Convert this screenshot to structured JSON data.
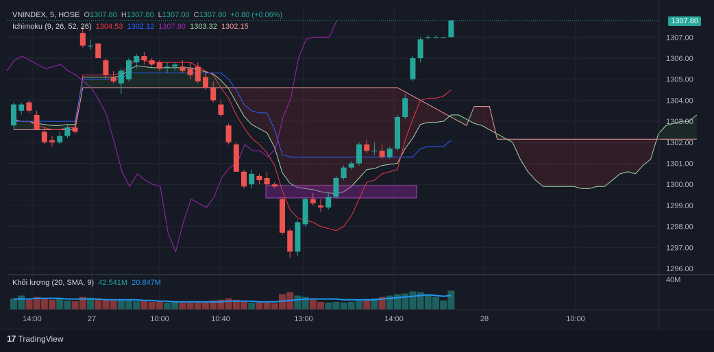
{
  "legend": {
    "symbol": "VNINDEX, 5, HOSE",
    "o_label": "O",
    "o": "1307.80",
    "h_label": "H",
    "h": "1307.80",
    "l_label": "L",
    "l": "1307.00",
    "c_label": "C",
    "c": "1307.80",
    "change": "+0.80 (+0.06%)"
  },
  "ichimoku": {
    "label": "Ichimoku (9, 26, 52, 26)",
    "conversion": "1304.53",
    "base": "1302.12",
    "lagging": "1307.80",
    "lead_a": "1303.32",
    "lead_b": "1302.15"
  },
  "volume_legend": {
    "label": "Khối lượng (20, SMA, 9)",
    "volume": "42.541M",
    "sma": "20.847M"
  },
  "last_price_tag": "1307.80",
  "footer": {
    "brand": "TradingView"
  },
  "colors": {
    "up": "#26a69a",
    "down": "#ef5350",
    "conversion": "#f23645",
    "base": "#2962ff",
    "lagging": "#9c27b0",
    "lead_a": "#a5d6a7",
    "lead_b": "#ef9a9a",
    "volume_sma": "#2196f3"
  },
  "chart_data": {
    "type": "candlestick",
    "y_ticks": [
      "1296.00",
      "1297.00",
      "1298.00",
      "1299.00",
      "1300.00",
      "1301.00",
      "1302.00",
      "1303.00",
      "1304.00",
      "1305.00",
      "1306.00",
      "1307.00"
    ],
    "ylim": [
      1295.8,
      1308.3
    ],
    "x_ticks": [
      "14:00",
      "27",
      "10:00",
      "10:40",
      "13:00",
      "14:00",
      "28",
      "10:00"
    ],
    "volume_tick": "40M",
    "candles": [
      {
        "o": 1302.8,
        "h": 1303.9,
        "l": 1302.6,
        "c": 1303.8
      },
      {
        "o": 1303.5,
        "h": 1303.9,
        "l": 1303.3,
        "c": 1303.8
      },
      {
        "o": 1303.9,
        "h": 1304.0,
        "l": 1303.4,
        "c": 1303.5
      },
      {
        "o": 1303.3,
        "h": 1303.5,
        "l": 1302.6,
        "c": 1302.6
      },
      {
        "o": 1302.5,
        "h": 1302.7,
        "l": 1301.9,
        "c": 1302.0
      },
      {
        "o": 1302.1,
        "h": 1302.3,
        "l": 1301.8,
        "c": 1302.0
      },
      {
        "o": 1302.0,
        "h": 1302.5,
        "l": 1301.9,
        "c": 1302.3
      },
      {
        "o": 1302.3,
        "h": 1302.8,
        "l": 1302.2,
        "c": 1302.7
      },
      {
        "o": 1302.7,
        "h": 1302.8,
        "l": 1302.4,
        "c": 1302.5
      },
      {
        "o": 1307.2,
        "h": 1307.5,
        "l": 1306.5,
        "c": 1306.6
      },
      {
        "o": 1306.6,
        "h": 1306.9,
        "l": 1306.4,
        "c": 1306.6
      },
      {
        "o": 1306.7,
        "h": 1306.7,
        "l": 1306.0,
        "c": 1306.0
      },
      {
        "o": 1305.9,
        "h": 1306.0,
        "l": 1305.0,
        "c": 1305.2
      },
      {
        "o": 1305.1,
        "h": 1305.4,
        "l": 1304.8,
        "c": 1304.9
      },
      {
        "o": 1304.8,
        "h": 1305.5,
        "l": 1304.3,
        "c": 1305.4
      },
      {
        "o": 1305.0,
        "h": 1306.0,
        "l": 1304.9,
        "c": 1305.9
      },
      {
        "o": 1305.8,
        "h": 1306.2,
        "l": 1305.5,
        "c": 1306.1
      },
      {
        "o": 1306.1,
        "h": 1306.3,
        "l": 1305.7,
        "c": 1305.9
      },
      {
        "o": 1305.9,
        "h": 1306.0,
        "l": 1305.6,
        "c": 1305.7
      },
      {
        "o": 1305.8,
        "h": 1305.9,
        "l": 1305.4,
        "c": 1305.5
      },
      {
        "o": 1305.6,
        "h": 1305.8,
        "l": 1305.3,
        "c": 1305.6
      },
      {
        "o": 1305.6,
        "h": 1305.8,
        "l": 1305.4,
        "c": 1305.7
      },
      {
        "o": 1305.6,
        "h": 1305.9,
        "l": 1305.3,
        "c": 1305.4
      },
      {
        "o": 1305.5,
        "h": 1305.8,
        "l": 1305.0,
        "c": 1305.2
      },
      {
        "o": 1305.6,
        "h": 1305.8,
        "l": 1304.8,
        "c": 1304.9
      },
      {
        "o": 1305.1,
        "h": 1305.3,
        "l": 1304.5,
        "c": 1304.6
      },
      {
        "o": 1304.6,
        "h": 1304.9,
        "l": 1303.9,
        "c": 1304.0
      },
      {
        "o": 1303.8,
        "h": 1304.0,
        "l": 1303.2,
        "c": 1303.3
      },
      {
        "o": 1302.8,
        "h": 1302.9,
        "l": 1301.9,
        "c": 1302.0
      },
      {
        "o": 1301.9,
        "h": 1302.0,
        "l": 1300.6,
        "c": 1300.6
      },
      {
        "o": 1300.6,
        "h": 1300.7,
        "l": 1299.8,
        "c": 1299.9
      },
      {
        "o": 1300.0,
        "h": 1300.7,
        "l": 1299.8,
        "c": 1300.5
      },
      {
        "o": 1300.4,
        "h": 1300.5,
        "l": 1300.0,
        "c": 1300.2
      },
      {
        "o": 1300.3,
        "h": 1300.6,
        "l": 1299.9,
        "c": 1300.0
      },
      {
        "o": 1300.0,
        "h": 1300.1,
        "l": 1299.8,
        "c": 1299.9
      },
      {
        "o": 1299.3,
        "h": 1299.4,
        "l": 1297.6,
        "c": 1297.7
      },
      {
        "o": 1297.8,
        "h": 1297.9,
        "l": 1296.5,
        "c": 1296.8
      },
      {
        "o": 1296.8,
        "h": 1298.3,
        "l": 1296.6,
        "c": 1298.2
      },
      {
        "o": 1298.1,
        "h": 1299.4,
        "l": 1298.0,
        "c": 1299.3
      },
      {
        "o": 1299.3,
        "h": 1299.6,
        "l": 1299.0,
        "c": 1299.1
      },
      {
        "o": 1299.0,
        "h": 1299.3,
        "l": 1298.7,
        "c": 1298.9
      },
      {
        "o": 1298.9,
        "h": 1299.6,
        "l": 1298.8,
        "c": 1299.4
      },
      {
        "o": 1299.4,
        "h": 1300.4,
        "l": 1299.3,
        "c": 1300.3
      },
      {
        "o": 1300.3,
        "h": 1300.9,
        "l": 1300.2,
        "c": 1300.8
      },
      {
        "o": 1300.8,
        "h": 1301.1,
        "l": 1300.7,
        "c": 1301.0
      },
      {
        "o": 1301.0,
        "h": 1302.0,
        "l": 1300.9,
        "c": 1301.9
      },
      {
        "o": 1301.9,
        "h": 1302.1,
        "l": 1301.5,
        "c": 1301.6
      },
      {
        "o": 1301.6,
        "h": 1302.0,
        "l": 1301.4,
        "c": 1301.6
      },
      {
        "o": 1301.6,
        "h": 1301.9,
        "l": 1301.2,
        "c": 1301.3
      },
      {
        "o": 1301.3,
        "h": 1301.8,
        "l": 1301.2,
        "c": 1301.7
      },
      {
        "o": 1301.7,
        "h": 1303.3,
        "l": 1301.6,
        "c": 1303.2
      },
      {
        "o": 1303.2,
        "h": 1304.3,
        "l": 1303.1,
        "c": 1304.1
      },
      {
        "o": 1305.0,
        "h": 1306.1,
        "l": 1304.9,
        "c": 1306.0
      },
      {
        "o": 1306.0,
        "h": 1307.0,
        "l": 1305.8,
        "c": 1306.9
      },
      {
        "o": 1307.0,
        "h": 1307.1,
        "l": 1306.9,
        "c": 1307.0
      },
      {
        "o": 1307.0,
        "h": 1307.1,
        "l": 1307.0,
        "c": 1307.0
      },
      {
        "o": 1307.0,
        "h": 1307.0,
        "l": 1307.0,
        "c": 1307.0
      },
      {
        "o": 1307.0,
        "h": 1307.8,
        "l": 1307.0,
        "c": 1307.8
      }
    ],
    "volumes": [
      16,
      20,
      14,
      18,
      15,
      14,
      15,
      13,
      12,
      18,
      17,
      16,
      14,
      13,
      15,
      13,
      12,
      12,
      11,
      11,
      10,
      11,
      10,
      10,
      10,
      11,
      13,
      14,
      16,
      14,
      11,
      10,
      10,
      10,
      9,
      22,
      25,
      20,
      18,
      14,
      11,
      10,
      11,
      10,
      11,
      13,
      15,
      16,
      18,
      20,
      22,
      23,
      26,
      25,
      21,
      18,
      13,
      27
    ],
    "volume_max": 45,
    "volume_sma": [
      15,
      15,
      15,
      16,
      16,
      16,
      16,
      15,
      15,
      15,
      15,
      15,
      14,
      14,
      14,
      14,
      14,
      13,
      13,
      12,
      12,
      11,
      11,
      11,
      11,
      11,
      11,
      11,
      12,
      12,
      12,
      12,
      11,
      11,
      11,
      12,
      13,
      14,
      15,
      15,
      15,
      15,
      15,
      14,
      14,
      14,
      14,
      14,
      15,
      16,
      17,
      18,
      19,
      20,
      21,
      20,
      19,
      20
    ],
    "tenkan": [
      1303.1,
      1303.0,
      1303.0,
      1302.8,
      1302.7,
      1302.6,
      1302.6,
      1302.7,
      1302.7,
      1305.2,
      1305.2,
      1305.2,
      1305.2,
      1305.2,
      1305.3,
      1305.6,
      1306.0,
      1305.9,
      1305.8,
      1305.8,
      1305.8,
      1305.8,
      1305.8,
      1305.8,
      1305.6,
      1305.4,
      1305.2,
      1304.6,
      1304.1,
      1303.3,
      1302.7,
      1302.2,
      1301.9,
      1301.5,
      1300.9,
      1299.7,
      1298.8,
      1298.4,
      1298.3,
      1298.2,
      1298.0,
      1297.9,
      1297.8,
      1298.0,
      1298.5,
      1299.3,
      1300.1,
      1300.2,
      1300.5,
      1300.6,
      1300.7,
      1302.1,
      1303.1,
      1304.0,
      1304.1,
      1304.1,
      1304.2,
      1304.5
    ],
    "kijun": [
      1303.0,
      1303.0,
      1303.0,
      1303.0,
      1303.0,
      1303.0,
      1303.0,
      1303.0,
      1303.0,
      1305.0,
      1305.0,
      1305.0,
      1305.0,
      1305.0,
      1305.0,
      1305.3,
      1305.3,
      1305.3,
      1305.3,
      1305.3,
      1305.3,
      1305.3,
      1305.3,
      1305.3,
      1305.3,
      1305.3,
      1305.3,
      1305.3,
      1305.0,
      1304.5,
      1303.8,
      1303.5,
      1303.4,
      1303.4,
      1302.6,
      1301.4,
      1301.3,
      1301.3,
      1301.3,
      1301.3,
      1301.3,
      1301.3,
      1301.3,
      1301.3,
      1301.3,
      1301.3,
      1301.3,
      1301.3,
      1301.3,
      1301.3,
      1301.3,
      1301.3,
      1301.3,
      1301.7,
      1301.8,
      1301.8,
      1301.8,
      1302.1
    ]
  }
}
